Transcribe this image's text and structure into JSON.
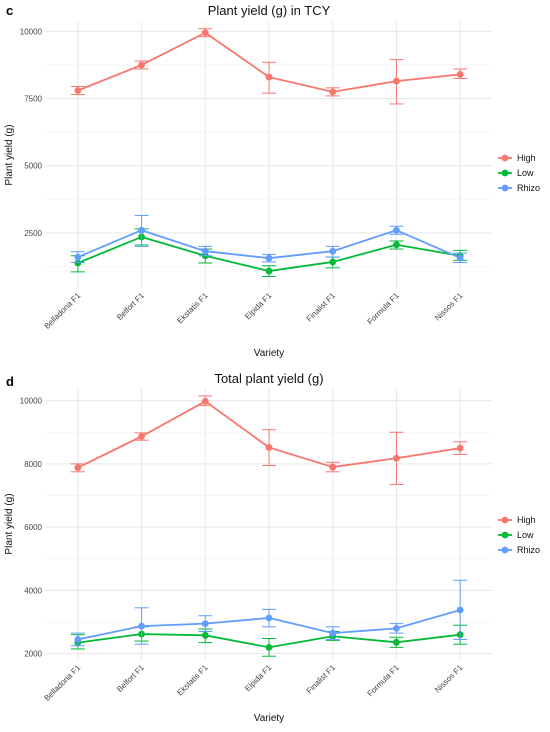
{
  "colors": {
    "High": "#F8766D",
    "Low": "#00BA38",
    "Rhizo": "#619CFF"
  },
  "chart_data": [
    {
      "panel": "c",
      "type": "line",
      "title": "Plant yield (g) in TCY",
      "xlabel": "Variety",
      "ylabel": "Plant yield (g)",
      "categories": [
        "Belladona F1",
        "Belfort F1",
        "Ekstatis F1",
        "Elpida F1",
        "Finalist F1",
        "Formula F1",
        "Nissos F1"
      ],
      "ylim": [
        450,
        10350
      ],
      "yticks": [
        2500,
        5000,
        7500,
        10000
      ],
      "yticklabels": [
        "2500",
        "5000",
        "7500",
        "10000"
      ],
      "legend": [
        "High",
        "Low",
        "Rhizo"
      ],
      "legend_position": "right",
      "grid": true,
      "series": [
        {
          "name": "High",
          "values": [
            7800,
            8750,
            9950,
            8300,
            7750,
            8150,
            8400
          ],
          "lower": [
            7650,
            8600,
            9800,
            7700,
            7600,
            7300,
            8250
          ],
          "upper": [
            7950,
            8900,
            10100,
            8850,
            7900,
            8950,
            8600
          ]
        },
        {
          "name": "Low",
          "values": [
            1380,
            2350,
            1650,
            1080,
            1420,
            2060,
            1650
          ],
          "lower": [
            1050,
            2050,
            1380,
            880,
            1200,
            1900,
            1480
          ],
          "upper": [
            1650,
            2650,
            1900,
            1280,
            1600,
            2200,
            1850
          ]
        },
        {
          "name": "Rhizo",
          "values": [
            1600,
            2600,
            1820,
            1560,
            1820,
            2600,
            1570
          ],
          "lower": [
            1400,
            2000,
            1650,
            1420,
            1600,
            2450,
            1400
          ],
          "upper": [
            1800,
            3150,
            2000,
            1700,
            2000,
            2750,
            1750
          ]
        }
      ]
    },
    {
      "panel": "d",
      "type": "line",
      "title": "Total plant yield (g)",
      "xlabel": "Variety",
      "ylabel": "Plant yield (g)",
      "categories": [
        "Belladona F1",
        "Belfort F1",
        "Ekstatis F1",
        "Elpida F1",
        "Finalist F1",
        "Formula F1",
        "Nissos F1"
      ],
      "ylim": [
        1800,
        10400
      ],
      "yticks": [
        2000,
        4000,
        6000,
        8000,
        10000
      ],
      "yticklabels": [
        "2000",
        "4000",
        "6000",
        "8000",
        "10000"
      ],
      "legend": [
        "High",
        "Low",
        "Rhizo"
      ],
      "legend_position": "right",
      "grid": true,
      "series": [
        {
          "name": "High",
          "values": [
            7880,
            8870,
            9980,
            8520,
            7900,
            8180,
            8500
          ],
          "lower": [
            7750,
            8750,
            9850,
            7950,
            7750,
            7350,
            8300
          ],
          "upper": [
            8000,
            8980,
            10150,
            9080,
            8050,
            9000,
            8700
          ]
        },
        {
          "name": "Low",
          "values": [
            2350,
            2620,
            2580,
            2200,
            2550,
            2360,
            2600
          ],
          "lower": [
            2150,
            2400,
            2350,
            1920,
            2420,
            2200,
            2300
          ],
          "upper": [
            2600,
            2850,
            2780,
            2480,
            2700,
            2520,
            2900
          ]
        },
        {
          "name": "Rhizo",
          "values": [
            2450,
            2870,
            2950,
            3130,
            2650,
            2800,
            3380
          ],
          "lower": [
            2250,
            2300,
            2700,
            2850,
            2450,
            2650,
            2450
          ],
          "upper": [
            2650,
            3450,
            3200,
            3400,
            2850,
            2950,
            4320
          ]
        }
      ]
    }
  ]
}
